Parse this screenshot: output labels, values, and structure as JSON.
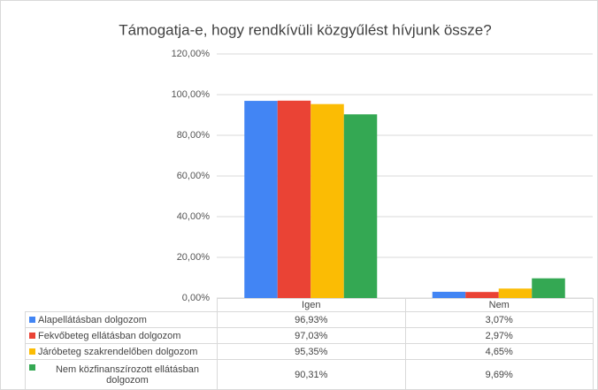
{
  "chart_data": {
    "type": "bar",
    "title": "Támogatja-e, hogy rendkívüli közgyűlést hívjunk össze?",
    "categories": [
      "Igen",
      "Nem"
    ],
    "series": [
      {
        "name": "Alapellátásban dolgozom",
        "color": "#4285f4",
        "values": [
          96.93,
          3.07
        ],
        "value_labels": [
          "96,93%",
          "3,07%"
        ]
      },
      {
        "name": "Fekvőbeteg ellátásban dolgozom",
        "color": "#ea4335",
        "values": [
          97.03,
          2.97
        ],
        "value_labels": [
          "97,03%",
          "2,97%"
        ]
      },
      {
        "name": "Járóbeteg szakrendelőben dolgozom",
        "color": "#fbbc04",
        "values": [
          95.35,
          4.65
        ],
        "value_labels": [
          "95,35%",
          "4,65%"
        ]
      },
      {
        "name": "Nem közfinanszírozott ellátásban dolgozom",
        "color": "#34a853",
        "values": [
          90.31,
          9.69
        ],
        "value_labels": [
          "90,31%",
          "9,69%"
        ]
      }
    ],
    "ylim": [
      0,
      120
    ],
    "yticks": [
      {
        "value": 0,
        "label": "0,00%"
      },
      {
        "value": 20,
        "label": "20,00%"
      },
      {
        "value": 40,
        "label": "40,00%"
      },
      {
        "value": 60,
        "label": "60,00%"
      },
      {
        "value": 80,
        "label": "80,00%"
      },
      {
        "value": 100,
        "label": "100,00%"
      },
      {
        "value": 120,
        "label": "120,00%"
      }
    ],
    "grid": true
  }
}
